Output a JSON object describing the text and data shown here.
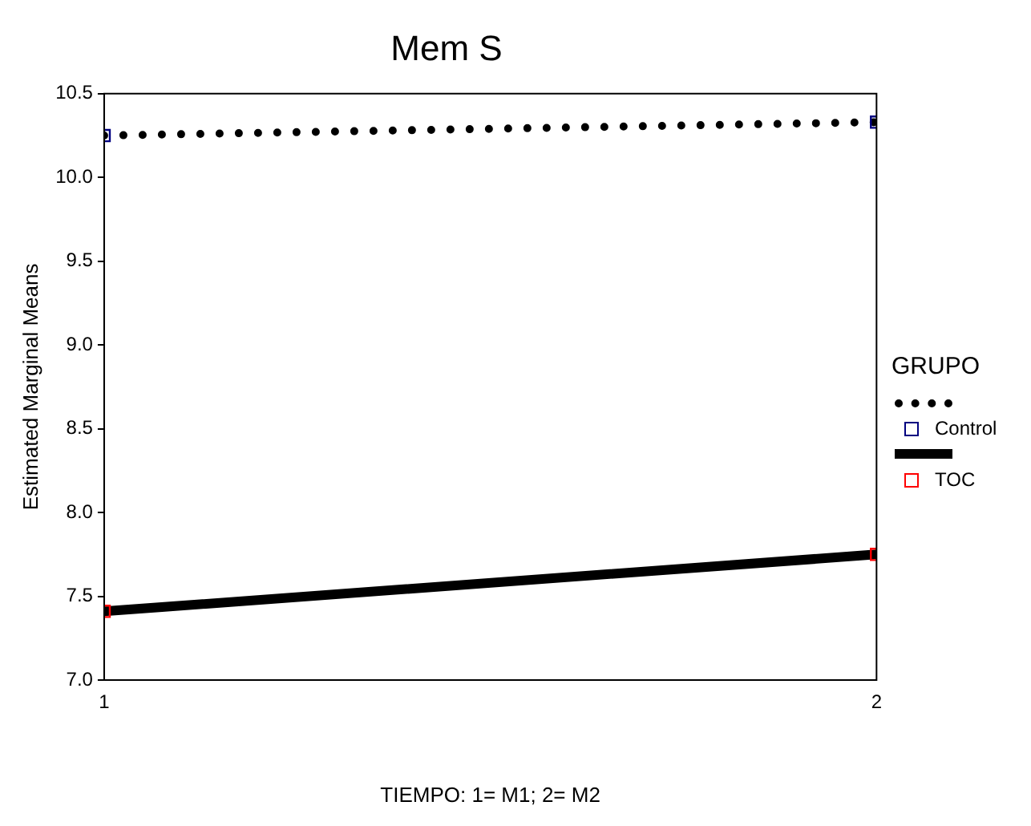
{
  "chart_data": {
    "type": "line",
    "title": "Mem S",
    "xlabel": "TIEMPO: 1= M1; 2= M2",
    "ylabel": "Estimated Marginal Means",
    "legend_title": "GRUPO",
    "x": [
      1,
      2
    ],
    "series": [
      {
        "name": "Control",
        "color": "#000000",
        "colors": [
          "#000080",
          "#000080"
        ],
        "line_style": "dotted",
        "values": [
          10.25,
          10.33
        ]
      },
      {
        "name": "TOC",
        "color": "#000000",
        "colors": [
          "#ff0000",
          "#ff0000"
        ],
        "line_style": "solid",
        "values": [
          7.41,
          7.75
        ]
      }
    ],
    "xlim": [
      1,
      2
    ],
    "xticks": [
      1,
      2
    ],
    "ylim": [
      7.0,
      10.5
    ],
    "yticks": [
      {
        "value": 7.0,
        "label": "7.0"
      },
      {
        "value": 7.5,
        "label": "7.5"
      },
      {
        "value": 8.0,
        "label": "8.0"
      },
      {
        "value": 8.5,
        "label": "8.5"
      },
      {
        "value": 9.0,
        "label": "9.0"
      },
      {
        "value": 9.5,
        "label": "9.5"
      },
      {
        "value": 10.0,
        "label": "10.0"
      },
      {
        "value": 10.5,
        "label": "10.5"
      }
    ],
    "grid": false,
    "legend": "right",
    "marker": "square"
  }
}
